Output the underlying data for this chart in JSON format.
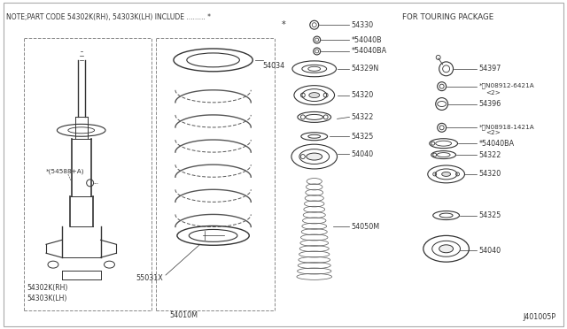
{
  "bg_color": "#ffffff",
  "note_text": "NOTE;PART CODE 54302K(RH), 54303K(LH) INCLUDE ......... *",
  "diagram_id": "J401005P",
  "touring_title": "FOR TOURING PACKAGE",
  "font_color": "#333333"
}
